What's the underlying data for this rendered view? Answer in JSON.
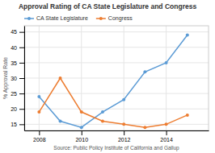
{
  "chart_data": {
    "type": "line",
    "title": "Approval Rating of CA State Legislature and Congress",
    "xlabel": "Source: Public Policy Institute of California and Gallup",
    "ylabel": "% Approval Rate",
    "x": [
      2008,
      2009,
      2010,
      2011,
      2012,
      2013,
      2014,
      2015
    ],
    "series": [
      {
        "name": "CA State Legislature",
        "color": "#5b9bd5",
        "values": [
          24,
          16,
          14,
          19,
          23,
          32,
          35,
          44
        ]
      },
      {
        "name": "Congress",
        "color": "#ed7d31",
        "values": [
          19,
          30,
          19,
          16,
          15,
          14,
          15,
          18
        ]
      }
    ],
    "xlim": [
      2007.3,
      2016.0
    ],
    "xticks": [
      2008,
      2010,
      2012,
      2014
    ],
    "ylim": [
      13,
      47
    ],
    "yticks": [
      15,
      20,
      25,
      30,
      35,
      40,
      45
    ],
    "grid": true,
    "legend": "top",
    "marker": "circle"
  }
}
